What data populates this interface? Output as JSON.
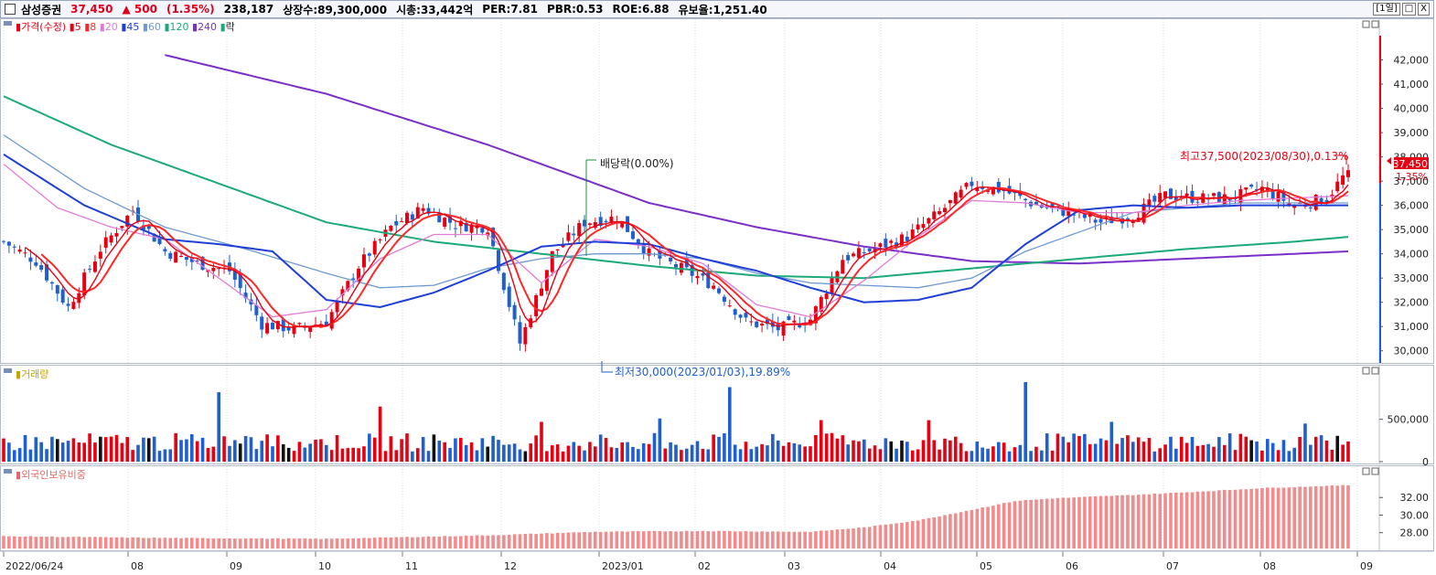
{
  "header": {
    "name": "삼성증권",
    "price": "37,450",
    "change": "▲ 500",
    "change_pct": "(1.35%)",
    "volume": "238,187",
    "shares": "상장수:89,300,000",
    "market_cap": "시총:33,442억",
    "per": "PER:7.81",
    "pbr": "PBR:0.53",
    "roe": "ROE:6.88",
    "foreign": "유보율:1,251.40",
    "period_btn": "[1일]",
    "minimize_btn": "□",
    "close_btn": "X"
  },
  "legend": {
    "price_label": "가격(수정)",
    "ma": [
      {
        "label": "5",
        "color": "#e60012"
      },
      {
        "label": "8",
        "color": "#ff2828"
      },
      {
        "label": "20",
        "color": "#e27ad8"
      },
      {
        "label": "45",
        "color": "#1f3fd6"
      },
      {
        "label": "60",
        "color": "#6f9ad0"
      },
      {
        "label": "120",
        "color": "#1daa78"
      },
      {
        "label": "240",
        "color": "#7a2fc8"
      }
    ],
    "ex_label": "락",
    "volume_label": "거래량",
    "foreign_label": "외국인보유비중"
  },
  "annotations": {
    "dividend": "배당락(0.00%)",
    "low": "최저30,000(2023/01/03),19.89%",
    "high": "최고37,500(2023/08/30),0.13%",
    "last_price": "37,450",
    "last_pct": "1.35%"
  },
  "colors": {
    "up": "#e60012",
    "down": "#1f5fd0",
    "foreign_bar": "#f28c8c"
  },
  "chart_data": [
    {
      "type": "candlestick",
      "title": "삼성증권 가격(수정)",
      "ylim": [
        29500,
        43000
      ],
      "y_ticks": [
        30000,
        31000,
        32000,
        33000,
        34000,
        35000,
        36000,
        37000,
        38000,
        39000,
        40000,
        41000,
        42000
      ],
      "x_ticks": [
        "2022/06/24",
        "08",
        "09",
        "10",
        "11",
        "12",
        "2023/01",
        "02",
        "03",
        "04",
        "05",
        "06",
        "07",
        "08",
        "09"
      ],
      "close_anchors": [
        [
          0,
          34500
        ],
        [
          6,
          33700
        ],
        [
          12,
          31800
        ],
        [
          18,
          34200
        ],
        [
          24,
          35800
        ],
        [
          30,
          34100
        ],
        [
          36,
          33600
        ],
        [
          42,
          33300
        ],
        [
          48,
          31100
        ],
        [
          54,
          30900
        ],
        [
          60,
          31200
        ],
        [
          66,
          33500
        ],
        [
          72,
          35100
        ],
        [
          78,
          35900
        ],
        [
          84,
          35200
        ],
        [
          90,
          35100
        ],
        [
          96,
          30300
        ],
        [
          102,
          34000
        ],
        [
          108,
          35300
        ],
        [
          114,
          35500
        ],
        [
          120,
          34000
        ],
        [
          126,
          33400
        ],
        [
          132,
          32700
        ],
        [
          138,
          31200
        ],
        [
          144,
          30900
        ],
        [
          150,
          31300
        ],
        [
          156,
          33800
        ],
        [
          162,
          34200
        ],
        [
          168,
          34700
        ],
        [
          174,
          35700
        ],
        [
          180,
          36900
        ],
        [
          186,
          36600
        ],
        [
          192,
          36000
        ],
        [
          198,
          35700
        ],
        [
          204,
          35300
        ],
        [
          210,
          35600
        ],
        [
          216,
          36400
        ],
        [
          222,
          36300
        ],
        [
          228,
          36300
        ],
        [
          234,
          36700
        ],
        [
          240,
          36000
        ],
        [
          246,
          36300
        ],
        [
          250,
          37450
        ]
      ],
      "ma_series": [
        {
          "name": "5",
          "window": 5
        },
        {
          "name": "8",
          "window": 8
        },
        {
          "name": "20",
          "window": 20
        },
        {
          "name": "45",
          "window": 45
        },
        {
          "name": "60",
          "window": 60
        },
        {
          "name": "120",
          "window": 120
        },
        {
          "name": "240",
          "window": 240
        }
      ],
      "ma_anchors": {
        "20": [
          [
            0,
            37700
          ],
          [
            10,
            35900
          ],
          [
            20,
            35100
          ],
          [
            30,
            34600
          ],
          [
            50,
            31400
          ],
          [
            60,
            31700
          ],
          [
            70,
            33800
          ],
          [
            80,
            34800
          ],
          [
            90,
            34800
          ],
          [
            100,
            32800
          ],
          [
            110,
            34600
          ],
          [
            120,
            34300
          ],
          [
            130,
            33600
          ],
          [
            140,
            31900
          ],
          [
            150,
            31400
          ],
          [
            160,
            32900
          ],
          [
            170,
            34700
          ],
          [
            180,
            36200
          ],
          [
            190,
            36100
          ],
          [
            200,
            35700
          ],
          [
            210,
            35700
          ],
          [
            220,
            36000
          ],
          [
            230,
            36200
          ],
          [
            240,
            36300
          ],
          [
            250,
            36400
          ]
        ],
        "45": [
          [
            0,
            38100
          ],
          [
            15,
            36000
          ],
          [
            30,
            34600
          ],
          [
            40,
            34400
          ],
          [
            50,
            34100
          ],
          [
            60,
            32100
          ],
          [
            70,
            31800
          ],
          [
            80,
            32400
          ],
          [
            90,
            33300
          ],
          [
            100,
            34300
          ],
          [
            110,
            34500
          ],
          [
            120,
            34400
          ],
          [
            130,
            33800
          ],
          [
            140,
            33300
          ],
          [
            150,
            32600
          ],
          [
            160,
            32000
          ],
          [
            170,
            32100
          ],
          [
            180,
            32600
          ],
          [
            190,
            34400
          ],
          [
            200,
            35800
          ],
          [
            210,
            36000
          ],
          [
            220,
            35900
          ],
          [
            230,
            36000
          ],
          [
            240,
            36000
          ],
          [
            250,
            36000
          ]
        ],
        "60": [
          [
            0,
            38900
          ],
          [
            15,
            36700
          ],
          [
            30,
            35100
          ],
          [
            45,
            34200
          ],
          [
            60,
            33200
          ],
          [
            70,
            32600
          ],
          [
            80,
            32700
          ],
          [
            90,
            33400
          ],
          [
            100,
            33800
          ],
          [
            110,
            34000
          ],
          [
            120,
            34000
          ],
          [
            130,
            33800
          ],
          [
            140,
            33200
          ],
          [
            150,
            32800
          ],
          [
            160,
            32700
          ],
          [
            170,
            32600
          ],
          [
            180,
            33000
          ],
          [
            190,
            34100
          ],
          [
            200,
            34900
          ],
          [
            210,
            35700
          ],
          [
            220,
            35900
          ],
          [
            230,
            36100
          ],
          [
            240,
            36100
          ],
          [
            250,
            36100
          ]
        ],
        "120": [
          [
            0,
            40500
          ],
          [
            20,
            38500
          ],
          [
            40,
            36900
          ],
          [
            60,
            35300
          ],
          [
            80,
            34500
          ],
          [
            100,
            34000
          ],
          [
            120,
            33500
          ],
          [
            140,
            33100
          ],
          [
            160,
            33000
          ],
          [
            180,
            33400
          ],
          [
            200,
            33800
          ],
          [
            210,
            34000
          ],
          [
            220,
            34200
          ],
          [
            240,
            34500
          ],
          [
            250,
            34700
          ]
        ],
        "240": [
          [
            30,
            42200
          ],
          [
            60,
            40600
          ],
          [
            90,
            38500
          ],
          [
            120,
            36100
          ],
          [
            140,
            35100
          ],
          [
            160,
            34300
          ],
          [
            180,
            33700
          ],
          [
            200,
            33600
          ],
          [
            220,
            33800
          ],
          [
            240,
            34000
          ],
          [
            250,
            34100
          ]
        ]
      }
    },
    {
      "type": "bar",
      "title": "거래량",
      "ylim": [
        0,
        950000
      ],
      "y_ticks": [
        0,
        500000
      ],
      "y_tick_labels": [
        "0",
        "500,000"
      ],
      "spikes": [
        [
          40,
          820000
        ],
        [
          70,
          650000
        ],
        [
          100,
          470000
        ],
        [
          122,
          510000
        ],
        [
          135,
          880000
        ],
        [
          152,
          490000
        ],
        [
          172,
          490000
        ],
        [
          190,
          940000
        ],
        [
          206,
          470000
        ],
        [
          242,
          450000
        ],
        [
          250,
          238187
        ]
      ]
    },
    {
      "type": "bar",
      "title": "외국인보유비중",
      "ylim": [
        26.2,
        34.0
      ],
      "y_ticks": [
        28.0,
        30.0,
        32.0
      ],
      "y_tick_labels": [
        "28.00",
        "30.00",
        "32.00"
      ],
      "anchors": [
        [
          0,
          27.6
        ],
        [
          30,
          27.4
        ],
        [
          60,
          27.3
        ],
        [
          90,
          27.7
        ],
        [
          110,
          28.1
        ],
        [
          130,
          28.2
        ],
        [
          150,
          28.1
        ],
        [
          160,
          28.6
        ],
        [
          170,
          29.4
        ],
        [
          180,
          30.6
        ],
        [
          188,
          31.6
        ],
        [
          195,
          31.9
        ],
        [
          210,
          32.3
        ],
        [
          220,
          32.6
        ],
        [
          235,
          33.1
        ],
        [
          250,
          33.4
        ]
      ]
    }
  ]
}
